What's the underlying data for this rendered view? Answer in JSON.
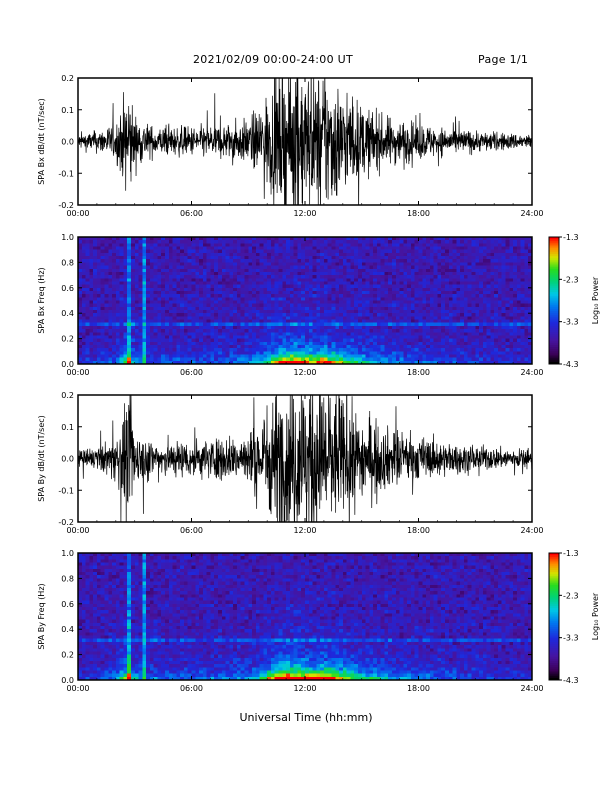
{
  "header": {
    "title": "2021/02/09  00:00-24:00 UT",
    "page": "Page 1/1"
  },
  "footer": {
    "xlabel": "Universal Time (hh:mm)"
  },
  "chart_data": [
    {
      "type": "line",
      "ylabel": "SPA Bx dB/dt (nT/sec)",
      "xlim_hours": [
        0,
        24
      ],
      "ylim": [
        -0.2,
        0.2
      ],
      "yticks": [
        "0.2",
        "0.1",
        "0.0",
        "-0.1",
        "-0.2"
      ],
      "xticks": [
        "00:00",
        "06:00",
        "12:00",
        "18:00",
        "24:00"
      ],
      "envelope": {
        "hours": [
          0,
          1,
          2,
          2.5,
          2.7,
          3,
          4,
          6,
          8,
          9,
          9.5,
          10,
          10.5,
          11,
          11.5,
          12,
          12.5,
          13,
          13.5,
          14,
          15,
          16,
          17,
          18,
          19,
          20,
          22,
          24
        ],
        "amplitude": [
          0.02,
          0.03,
          0.05,
          0.13,
          0.16,
          0.07,
          0.04,
          0.04,
          0.05,
          0.06,
          0.09,
          0.13,
          0.17,
          0.2,
          0.22,
          0.2,
          0.18,
          0.2,
          0.18,
          0.14,
          0.1,
          0.07,
          0.06,
          0.05,
          0.04,
          0.035,
          0.025,
          0.02
        ]
      }
    },
    {
      "type": "heatmap",
      "ylabel": "SPA Bx Freq (Hz)",
      "colorbar_label": "Log₁₀ Power",
      "colorbar_ticks": [
        "-1.3",
        "-2.3",
        "-3.3",
        "-4.3"
      ],
      "value_range": [
        -4.3,
        -1.3
      ],
      "xlim_hours": [
        0,
        24
      ],
      "ylim": [
        0,
        1.0
      ],
      "yticks": [
        "1.0",
        "0.8",
        "0.6",
        "0.4",
        "0.2",
        "0.0"
      ],
      "xticks": [
        "00:00",
        "06:00",
        "12:00",
        "18:00",
        "24:00"
      ]
    },
    {
      "type": "line",
      "ylabel": "SPA By dB/dt (nT/sec)",
      "xlim_hours": [
        0,
        24
      ],
      "ylim": [
        -0.2,
        0.2
      ],
      "yticks": [
        "0.2",
        "0.1",
        "0.0",
        "-0.1",
        "-0.2"
      ],
      "xticks": [
        "00:00",
        "06:00",
        "12:00",
        "18:00",
        "24:00"
      ],
      "envelope": {
        "hours": [
          0,
          1,
          2,
          2.5,
          2.7,
          3,
          4,
          6,
          8,
          9,
          9.5,
          10,
          10.5,
          11,
          11.5,
          12,
          12.5,
          13,
          13.5,
          14,
          15,
          16,
          17,
          18,
          19,
          20,
          22,
          24
        ],
        "amplitude": [
          0.02,
          0.03,
          0.06,
          0.14,
          0.17,
          0.08,
          0.05,
          0.05,
          0.06,
          0.07,
          0.1,
          0.15,
          0.2,
          0.22,
          0.23,
          0.22,
          0.2,
          0.22,
          0.2,
          0.16,
          0.12,
          0.09,
          0.07,
          0.06,
          0.05,
          0.04,
          0.03,
          0.025
        ]
      }
    },
    {
      "type": "heatmap",
      "ylabel": "SPA By Freq (Hz)",
      "colorbar_label": "Log₁₀ Power",
      "colorbar_ticks": [
        "-1.3",
        "-2.3",
        "-3.3",
        "-4.3"
      ],
      "value_range": [
        -4.3,
        -1.3
      ],
      "xlim_hours": [
        0,
        24
      ],
      "ylim": [
        0,
        1.0
      ],
      "yticks": [
        "1.0",
        "0.8",
        "0.6",
        "0.4",
        "0.2",
        "0.0"
      ],
      "xticks": [
        "00:00",
        "06:00",
        "12:00",
        "18:00",
        "24:00"
      ]
    }
  ]
}
